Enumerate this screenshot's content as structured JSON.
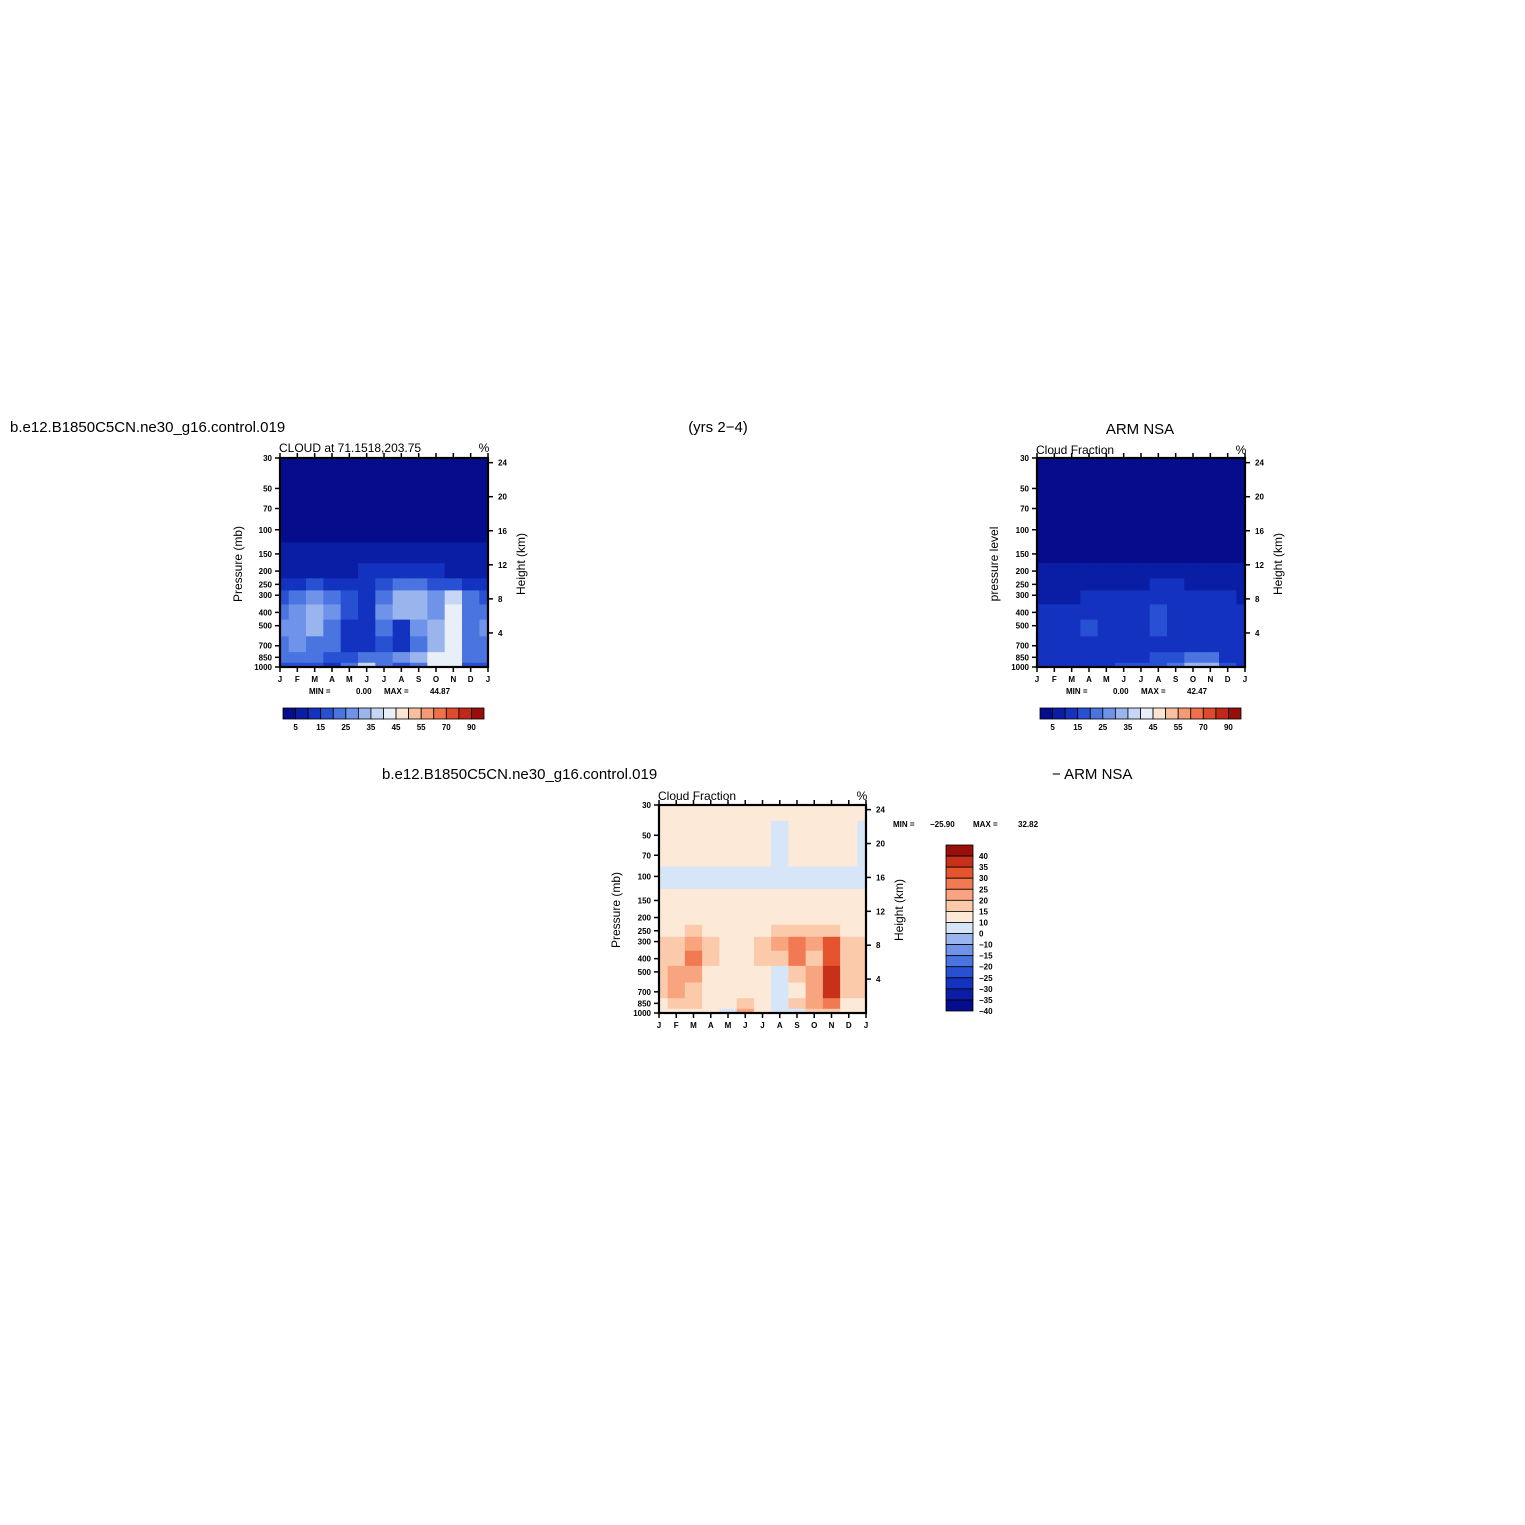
{
  "header": {
    "case_name": "b.e12.B1850C5CN.ne30_g16.control.019",
    "years": "(yrs 2−4)",
    "obs_name": "ARM NSA",
    "diff_case_name": "b.e12.B1850C5CN.ne30_g16.control.019",
    "diff_obs_name": "− ARM NSA"
  },
  "colors": {
    "abs_palette": [
      "#050d8c",
      "#0a1ea5",
      "#1432c0",
      "#2850d2",
      "#4a74e0",
      "#6f93e8",
      "#9ab4ee",
      "#c7d6f5",
      "#e9eff9",
      "#fbe4d2",
      "#f8c09e",
      "#f49b74",
      "#ef704a",
      "#e04a2c",
      "#c02818",
      "#980e0a"
    ],
    "diff_palette": [
      "#050d8c",
      "#0a1ea5",
      "#1432c0",
      "#2850d2",
      "#4a74e0",
      "#6f93e8",
      "#9ab4ee",
      "#d6e6f8",
      "#fde9d8",
      "#fbcaab",
      "#f7a47f",
      "#f17a52",
      "#e5532f",
      "#c7311a",
      "#990f0a"
    ]
  },
  "chart_data": [
    {
      "type": "heatmap",
      "panel": "model",
      "title": "CLOUD at 71.1518,203.75",
      "units": "%",
      "ylabel": "Pressure (mb)",
      "y2label": "Height (km)",
      "x_ticks": [
        "J",
        "F",
        "M",
        "A",
        "M",
        "J",
        "J",
        "A",
        "S",
        "O",
        "N",
        "D",
        "J"
      ],
      "y_ticks": [
        "30",
        "50",
        "70",
        "100",
        "150",
        "200",
        "250",
        "300",
        "400",
        "500",
        "700",
        "850",
        "1000"
      ],
      "y2_ticks": [
        "24",
        "20",
        "16",
        "12",
        "8",
        "4"
      ],
      "stats": {
        "min_label": "MIN =",
        "min": "0.00",
        "max_label": "MAX =",
        "max": "44.87"
      },
      "colorbar_labels": [
        "5",
        "15",
        "25",
        "35",
        "45",
        "55",
        "70",
        "90"
      ],
      "levels": [
        1000,
        850,
        700,
        500,
        400,
        300,
        250,
        200,
        150,
        100,
        70,
        50,
        30
      ],
      "values": [
        [
          18,
          16,
          19,
          14,
          20,
          35,
          20,
          16,
          20,
          40,
          44,
          18,
          18
        ],
        [
          20,
          22,
          24,
          16,
          16,
          22,
          20,
          25,
          30,
          40,
          44,
          22,
          20
        ],
        [
          24,
          26,
          24,
          20,
          10,
          14,
          18,
          10,
          22,
          30,
          44,
          20,
          24
        ],
        [
          26,
          28,
          30,
          24,
          12,
          12,
          20,
          12,
          26,
          32,
          44,
          22,
          26
        ],
        [
          22,
          26,
          34,
          26,
          18,
          14,
          26,
          30,
          34,
          28,
          40,
          24,
          22
        ],
        [
          18,
          22,
          26,
          20,
          16,
          14,
          24,
          30,
          32,
          28,
          36,
          20,
          18
        ],
        [
          12,
          14,
          16,
          14,
          12,
          12,
          16,
          20,
          22,
          18,
          18,
          14,
          12
        ],
        [
          5,
          6,
          8,
          7,
          8,
          10,
          12,
          14,
          14,
          12,
          8,
          6,
          5
        ],
        [
          3,
          3,
          3,
          3,
          3,
          4,
          4,
          4,
          4,
          4,
          3,
          3,
          3
        ],
        [
          2,
          2,
          2,
          2,
          2,
          2,
          2,
          2,
          2,
          2,
          2,
          2,
          2
        ],
        [
          1,
          1,
          1,
          1,
          1,
          1,
          1,
          1,
          1,
          1,
          1,
          1,
          1
        ],
        [
          1,
          1,
          1,
          1,
          1,
          1,
          1,
          1,
          1,
          1,
          1,
          1,
          1
        ],
        [
          0,
          0,
          0,
          0,
          0,
          0,
          0,
          0,
          0,
          0,
          0,
          0,
          0
        ]
      ]
    },
    {
      "type": "heatmap",
      "panel": "obs",
      "title": "Cloud Fraction",
      "units": "%",
      "ylabel": "pressure level",
      "y2label": "Height (km)",
      "x_ticks": [
        "J",
        "F",
        "M",
        "A",
        "M",
        "J",
        "J",
        "A",
        "S",
        "O",
        "N",
        "D",
        "J"
      ],
      "y_ticks": [
        "30",
        "50",
        "70",
        "100",
        "150",
        "200",
        "250",
        "300",
        "400",
        "500",
        "700",
        "850",
        "1000"
      ],
      "y2_ticks": [
        "24",
        "20",
        "16",
        "12",
        "8",
        "4"
      ],
      "stats": {
        "min_label": "MIN =",
        "min": "0.00",
        "max_label": "MAX =",
        "max": "42.47"
      },
      "colorbar_labels": [
        "5",
        "15",
        "25",
        "35",
        "45",
        "55",
        "70",
        "90"
      ],
      "levels": [
        1000,
        850,
        700,
        500,
        400,
        300,
        250,
        200,
        150,
        100,
        70,
        50,
        30
      ],
      "values": [
        [
          14,
          14,
          14,
          14,
          14,
          18,
          18,
          18,
          22,
          30,
          30,
          16,
          14
        ],
        [
          12,
          12,
          12,
          12,
          12,
          12,
          14,
          16,
          18,
          22,
          22,
          14,
          12
        ],
        [
          10,
          10,
          12,
          12,
          10,
          10,
          12,
          12,
          14,
          14,
          14,
          10,
          10
        ],
        [
          12,
          12,
          14,
          16,
          12,
          10,
          14,
          16,
          14,
          14,
          14,
          12,
          12
        ],
        [
          12,
          12,
          12,
          14,
          12,
          12,
          14,
          16,
          14,
          14,
          12,
          12,
          12
        ],
        [
          8,
          8,
          8,
          10,
          10,
          10,
          12,
          12,
          12,
          12,
          10,
          10,
          8
        ],
        [
          5,
          5,
          5,
          6,
          6,
          8,
          8,
          10,
          10,
          8,
          8,
          6,
          5
        ],
        [
          3,
          3,
          3,
          3,
          3,
          4,
          4,
          5,
          5,
          4,
          4,
          3,
          3
        ],
        [
          2,
          2,
          2,
          2,
          2,
          2,
          2,
          2,
          2,
          2,
          2,
          2,
          2
        ],
        [
          1,
          1,
          1,
          1,
          1,
          1,
          1,
          1,
          1,
          1,
          1,
          1,
          1
        ],
        [
          1,
          1,
          1,
          1,
          1,
          1,
          1,
          1,
          1,
          1,
          1,
          1,
          1
        ],
        [
          0,
          0,
          0,
          0,
          0,
          0,
          0,
          0,
          0,
          0,
          0,
          0,
          0
        ],
        [
          0,
          0,
          0,
          0,
          0,
          0,
          0,
          0,
          0,
          0,
          0,
          0,
          0
        ]
      ]
    },
    {
      "type": "heatmap",
      "panel": "difference",
      "title": "Cloud Fraction",
      "units": "%",
      "ylabel": "Pressure (mb)",
      "y2label": "Height (km)",
      "x_ticks": [
        "J",
        "F",
        "M",
        "A",
        "M",
        "J",
        "J",
        "A",
        "S",
        "O",
        "N",
        "D",
        "J"
      ],
      "y_ticks": [
        "30",
        "50",
        "70",
        "100",
        "150",
        "200",
        "250",
        "300",
        "400",
        "500",
        "700",
        "850",
        "1000"
      ],
      "y2_ticks": [
        "24",
        "20",
        "16",
        "12",
        "8",
        "4"
      ],
      "stats": {
        "min_label": "MIN =",
        "min": "−25.90",
        "max_label": "MAX =",
        "max": "32.82"
      },
      "colorbar_labels": [
        "40",
        "35",
        "30",
        "25",
        "20",
        "15",
        "10",
        "0",
        "−10",
        "−15",
        "−20",
        "−25",
        "−30",
        "−35",
        "−40"
      ],
      "levels": [
        1000,
        850,
        700,
        500,
        400,
        300,
        250,
        200,
        150,
        100,
        70,
        50,
        30
      ],
      "values": [
        [
          4,
          2,
          5,
          0,
          -4,
          17,
          2,
          -2,
          -2,
          10,
          14,
          2,
          4
        ],
        [
          8,
          10,
          12,
          4,
          4,
          10,
          6,
          -4,
          12,
          18,
          22,
          8,
          8
        ],
        [
          14,
          16,
          12,
          8,
          0,
          4,
          6,
          -4,
          8,
          16,
          30,
          10,
          14
        ],
        [
          14,
          16,
          16,
          8,
          0,
          2,
          6,
          -4,
          12,
          18,
          32,
          10,
          14
        ],
        [
          10,
          14,
          22,
          12,
          6,
          2,
          12,
          14,
          20,
          14,
          28,
          12,
          10
        ],
        [
          10,
          14,
          18,
          10,
          6,
          4,
          12,
          18,
          20,
          16,
          26,
          10,
          10
        ],
        [
          7,
          9,
          11,
          8,
          6,
          4,
          8,
          10,
          12,
          10,
          10,
          8,
          7
        ],
        [
          2,
          3,
          5,
          4,
          5,
          6,
          8,
          9,
          9,
          8,
          4,
          3,
          2
        ],
        [
          1,
          1,
          1,
          1,
          1,
          1,
          1,
          1,
          1,
          1,
          1,
          1,
          1
        ],
        [
          -2,
          -2,
          -2,
          -2,
          -2,
          -2,
          -2,
          -2,
          -2,
          -2,
          -2,
          -2,
          -2
        ],
        [
          1,
          1,
          1,
          1,
          1,
          1,
          1,
          -3,
          1,
          1,
          1,
          1,
          -2
        ],
        [
          1,
          1,
          1,
          1,
          1,
          1,
          1,
          -3,
          1,
          1,
          1,
          1,
          -2
        ],
        [
          1,
          1,
          1,
          1,
          1,
          1,
          1,
          1,
          1,
          1,
          1,
          1,
          1
        ]
      ]
    }
  ]
}
